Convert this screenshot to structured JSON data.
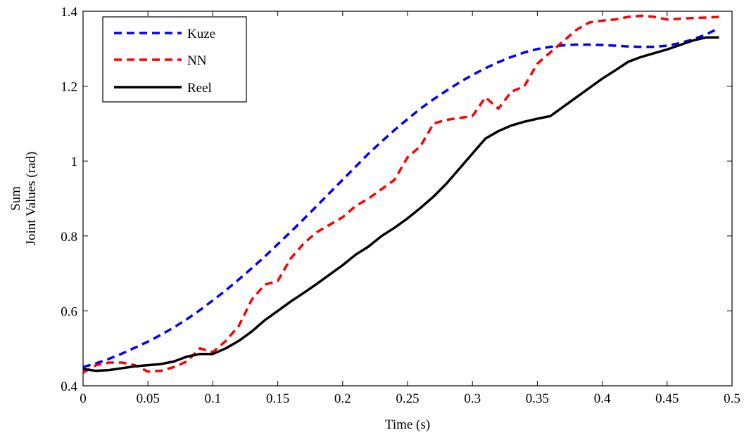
{
  "chart_data": {
    "type": "line",
    "title": "",
    "xlabel": "Time (s)",
    "ylabel_lines": [
      "Sum",
      "Joint Values (rad)"
    ],
    "xlim": [
      0,
      0.5
    ],
    "ylim": [
      0.4,
      1.4
    ],
    "xticks": [
      0,
      0.05,
      0.1,
      0.15,
      0.2,
      0.25,
      0.3,
      0.35,
      0.4,
      0.45,
      0.5
    ],
    "xtick_labels": [
      "0",
      "0.05",
      "0.1",
      "0.15",
      "0.2",
      "0.25",
      "0.3",
      "0.35",
      "0.4",
      "0.45",
      "0.5"
    ],
    "yticks": [
      0.4,
      0.6,
      0.8,
      1.0,
      1.2,
      1.4
    ],
    "ytick_labels": [
      "0.4",
      "0.6",
      "0.8",
      "1",
      "1.2",
      "1.4"
    ],
    "grid": false,
    "legend_position": "top-left",
    "series": [
      {
        "name": "Kuze",
        "color": "#0000ff",
        "style": "dashed",
        "x": [
          0,
          0.01,
          0.02,
          0.03,
          0.04,
          0.05,
          0.06,
          0.07,
          0.08,
          0.09,
          0.1,
          0.11,
          0.12,
          0.13,
          0.14,
          0.15,
          0.16,
          0.17,
          0.18,
          0.19,
          0.2,
          0.21,
          0.22,
          0.23,
          0.24,
          0.25,
          0.26,
          0.27,
          0.28,
          0.29,
          0.3,
          0.31,
          0.32,
          0.33,
          0.34,
          0.35,
          0.36,
          0.37,
          0.38,
          0.39,
          0.4,
          0.41,
          0.42,
          0.43,
          0.44,
          0.45,
          0.46,
          0.47,
          0.48,
          0.49
        ],
        "y": [
          0.45,
          0.46,
          0.472,
          0.486,
          0.502,
          0.518,
          0.536,
          0.556,
          0.578,
          0.602,
          0.628,
          0.655,
          0.684,
          0.714,
          0.745,
          0.778,
          0.811,
          0.845,
          0.88,
          0.915,
          0.95,
          0.985,
          1.02,
          1.052,
          1.083,
          1.112,
          1.14,
          1.165,
          1.188,
          1.21,
          1.23,
          1.248,
          1.264,
          1.278,
          1.29,
          1.299,
          1.305,
          1.309,
          1.311,
          1.311,
          1.31,
          1.308,
          1.306,
          1.305,
          1.305,
          1.308,
          1.315,
          1.325,
          1.338,
          1.355
        ]
      },
      {
        "name": "NN",
        "color": "#ff0000",
        "style": "dashed",
        "x": [
          0,
          0.01,
          0.02,
          0.03,
          0.04,
          0.05,
          0.06,
          0.07,
          0.08,
          0.09,
          0.1,
          0.11,
          0.12,
          0.13,
          0.14,
          0.15,
          0.16,
          0.17,
          0.18,
          0.19,
          0.2,
          0.21,
          0.22,
          0.23,
          0.24,
          0.25,
          0.26,
          0.27,
          0.28,
          0.29,
          0.3,
          0.31,
          0.32,
          0.33,
          0.34,
          0.35,
          0.36,
          0.37,
          0.38,
          0.39,
          0.4,
          0.41,
          0.42,
          0.43,
          0.44,
          0.45,
          0.46,
          0.47,
          0.48,
          0.49
        ],
        "y": [
          0.435,
          0.455,
          0.462,
          0.462,
          0.455,
          0.438,
          0.44,
          0.45,
          0.465,
          0.5,
          0.49,
          0.52,
          0.56,
          0.63,
          0.67,
          0.68,
          0.74,
          0.78,
          0.81,
          0.83,
          0.85,
          0.88,
          0.9,
          0.925,
          0.95,
          1.01,
          1.04,
          1.1,
          1.11,
          1.115,
          1.12,
          1.17,
          1.14,
          1.185,
          1.2,
          1.26,
          1.29,
          1.32,
          1.35,
          1.37,
          1.375,
          1.378,
          1.385,
          1.388,
          1.385,
          1.378,
          1.38,
          1.382,
          1.383,
          1.385
        ]
      },
      {
        "name": "Reel",
        "color": "#000000",
        "style": "solid",
        "x": [
          0,
          0.01,
          0.02,
          0.03,
          0.04,
          0.05,
          0.06,
          0.07,
          0.08,
          0.09,
          0.1,
          0.11,
          0.12,
          0.13,
          0.14,
          0.15,
          0.16,
          0.17,
          0.18,
          0.19,
          0.2,
          0.21,
          0.22,
          0.23,
          0.24,
          0.25,
          0.26,
          0.27,
          0.28,
          0.29,
          0.3,
          0.31,
          0.32,
          0.33,
          0.34,
          0.35,
          0.36,
          0.37,
          0.38,
          0.39,
          0.4,
          0.41,
          0.42,
          0.43,
          0.44,
          0.45,
          0.46,
          0.47,
          0.48,
          0.49
        ],
        "y": [
          0.445,
          0.44,
          0.442,
          0.447,
          0.452,
          0.455,
          0.458,
          0.465,
          0.478,
          0.485,
          0.485,
          0.5,
          0.52,
          0.545,
          0.575,
          0.6,
          0.625,
          0.648,
          0.672,
          0.697,
          0.722,
          0.75,
          0.772,
          0.8,
          0.822,
          0.847,
          0.875,
          0.905,
          0.94,
          0.98,
          1.02,
          1.06,
          1.08,
          1.095,
          1.105,
          1.113,
          1.12,
          1.145,
          1.17,
          1.195,
          1.22,
          1.242,
          1.265,
          1.278,
          1.288,
          1.298,
          1.31,
          1.322,
          1.33,
          1.33
        ]
      }
    ]
  }
}
